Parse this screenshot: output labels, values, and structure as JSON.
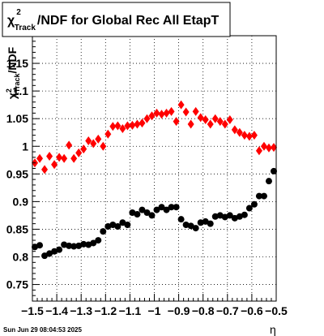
{
  "title_box": {
    "chi_symbol": "χ",
    "superscript": "2",
    "subscript": "Track",
    "rest": "/NDF for Global Rec All EtapT"
  },
  "ylabel": {
    "chi_symbol": "χ",
    "superscript": "2",
    "subscript": "Track",
    "rest": "/NDF"
  },
  "xlabel": "η",
  "timestamp": "Sun Jun 29 08:04:53 2025",
  "colors": {
    "red": "#ff0000",
    "black": "#000000"
  },
  "chart_data": {
    "type": "scatter",
    "xlim": [
      -1.5,
      -0.5
    ],
    "ylim": [
      0.72,
      1.2
    ],
    "x_ticks": [
      -1.5,
      -1.4,
      -1.3,
      -1.2,
      -1.1,
      -1.0,
      -0.9,
      -0.8,
      -0.7,
      -0.6,
      -0.5
    ],
    "x_tick_labels": [
      "−1.5",
      "−1.4",
      "−1.3",
      "−1.2",
      "−1.1",
      "−1",
      "−0.9",
      "−0.8",
      "−0.7",
      "−0.6",
      "−0.5"
    ],
    "y_ticks": [
      0.75,
      0.8,
      0.85,
      0.9,
      0.95,
      1.0,
      1.05,
      1.1,
      1.15
    ],
    "y_tick_labels": [
      "0.75",
      "0.8",
      "0.85",
      "0.9",
      "0.95",
      "1",
      "1.05",
      "1.1",
      "1.15"
    ],
    "grid": true,
    "series": [
      {
        "marker": "diamond",
        "color": "#ff0000",
        "x": [
          -1.49,
          -1.47,
          -1.45,
          -1.43,
          -1.41,
          -1.39,
          -1.37,
          -1.35,
          -1.33,
          -1.31,
          -1.29,
          -1.27,
          -1.25,
          -1.23,
          -1.21,
          -1.19,
          -1.17,
          -1.15,
          -1.13,
          -1.11,
          -1.09,
          -1.07,
          -1.05,
          -1.03,
          -1.01,
          -0.99,
          -0.97,
          -0.95,
          -0.93,
          -0.91,
          -0.89,
          -0.87,
          -0.85,
          -0.83,
          -0.81,
          -0.79,
          -0.77,
          -0.75,
          -0.73,
          -0.71,
          -0.69,
          -0.67,
          -0.65,
          -0.63,
          -0.61,
          -0.59,
          -0.57,
          -0.55,
          -0.53,
          -0.51
        ],
        "y": [
          0.97,
          0.978,
          0.958,
          0.982,
          0.967,
          0.98,
          0.978,
          1.002,
          0.978,
          0.988,
          0.995,
          1.01,
          1.005,
          1.013,
          1.0,
          1.022,
          1.036,
          1.037,
          1.032,
          1.037,
          1.038,
          1.04,
          1.042,
          1.05,
          1.055,
          1.06,
          1.058,
          1.06,
          1.063,
          1.045,
          1.075,
          1.062,
          1.04,
          1.063,
          1.052,
          1.048,
          1.04,
          1.05,
          1.045,
          1.04,
          1.048,
          1.03,
          1.025,
          1.02,
          1.018,
          1.02,
          0.992,
          1.0,
          0.997,
          0.998
        ]
      },
      {
        "marker": "circle",
        "color": "#000000",
        "x": [
          -1.49,
          -1.47,
          -1.45,
          -1.43,
          -1.41,
          -1.39,
          -1.37,
          -1.35,
          -1.33,
          -1.31,
          -1.29,
          -1.27,
          -1.25,
          -1.23,
          -1.21,
          -1.19,
          -1.17,
          -1.15,
          -1.13,
          -1.11,
          -1.09,
          -1.07,
          -1.05,
          -1.03,
          -1.01,
          -0.99,
          -0.97,
          -0.95,
          -0.93,
          -0.91,
          -0.89,
          -0.87,
          -0.85,
          -0.83,
          -0.81,
          -0.79,
          -0.77,
          -0.75,
          -0.73,
          -0.71,
          -0.69,
          -0.67,
          -0.65,
          -0.63,
          -0.61,
          -0.59,
          -0.57,
          -0.55,
          -0.53,
          -0.51
        ],
        "y": [
          0.818,
          0.821,
          0.802,
          0.806,
          0.81,
          0.813,
          0.822,
          0.82,
          0.819,
          0.82,
          0.823,
          0.822,
          0.825,
          0.83,
          0.846,
          0.855,
          0.858,
          0.855,
          0.862,
          0.858,
          0.88,
          0.877,
          0.885,
          0.88,
          0.875,
          0.885,
          0.89,
          0.885,
          0.89,
          0.89,
          0.868,
          0.858,
          0.856,
          0.852,
          0.862,
          0.864,
          0.86,
          0.873,
          0.875,
          0.872,
          0.875,
          0.87,
          0.873,
          0.876,
          0.888,
          0.895,
          0.91,
          0.91,
          0.937,
          0.955
        ]
      }
    ]
  }
}
